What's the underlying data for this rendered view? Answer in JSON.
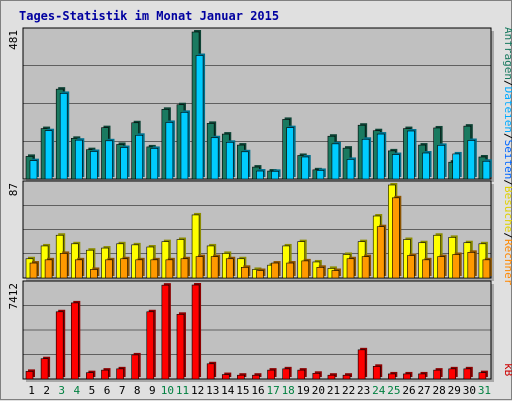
{
  "chart_data": {
    "type": "bar",
    "title": "Tages-Statistik im Monat Januar 2015",
    "categories": [
      "1",
      "2",
      "3",
      "4",
      "5",
      "6",
      "7",
      "8",
      "9",
      "10",
      "11",
      "12",
      "13",
      "14",
      "15",
      "16",
      "17",
      "18",
      "19",
      "20",
      "21",
      "22",
      "23",
      "24",
      "25",
      "26",
      "27",
      "28",
      "29",
      "30",
      "31"
    ],
    "weekend_days": [
      "3",
      "4",
      "10",
      "11",
      "17",
      "18",
      "24",
      "25",
      "31"
    ],
    "panels": [
      {
        "ymax_label": "481",
        "ylim": [
          0,
          481
        ],
        "series": [
          {
            "name": "Anfragen",
            "color": "#1a7a60",
            "values": [
              74,
              165,
              294,
              133,
              96,
              168,
              113,
              184,
              105,
              228,
              243,
              481,
              182,
              147,
              111,
              39,
              26,
              195,
              77,
              30,
              140,
              101,
              176,
              158,
              92,
              165,
              111,
              167,
              55,
              173,
              72
            ]
          },
          {
            "name": "Dateien",
            "color": "#00ccff",
            "values": [
              60,
              158,
              280,
              127,
              90,
              125,
              103,
              143,
              100,
              185,
              218,
              404,
              135,
              120,
              89,
              26,
              25,
              168,
              72,
              28,
              115,
              64,
              130,
              147,
              80,
              157,
              85,
              110,
              82,
              126,
              58
            ]
          },
          {
            "name": "Seiten",
            "color": "#3070f0",
            "values": [
              0,
              0,
              0,
              0,
              0,
              0,
              0,
              0,
              0,
              0,
              0,
              0,
              0,
              0,
              0,
              0,
              0,
              0,
              0,
              0,
              0,
              0,
              0,
              0,
              0,
              0,
              0,
              0,
              0,
              0,
              0
            ]
          }
        ]
      },
      {
        "ymax_label": "87",
        "ylim": [
          0,
          87
        ],
        "series": [
          {
            "name": "Besuche",
            "color": "#ffff00",
            "values": [
              18,
              30,
              40,
              32,
              26,
              28,
              32,
              31,
              29,
              34,
              36,
              59,
              30,
              23,
              18,
              8,
              12,
              30,
              34,
              15,
              9,
              22,
              34,
              58,
              87,
              36,
              33,
              40,
              38,
              33,
              32
            ]
          },
          {
            "name": "Rechner",
            "color": "#ff9900",
            "values": [
              14,
              17,
              23,
              17,
              8,
              17,
              18,
              17,
              17,
              17,
              18,
              20,
              20,
              18,
              10,
              7,
              14,
              14,
              16,
              10,
              7,
              18,
              20,
              48,
              75,
              21,
              17,
              20,
              22,
              24,
              17
            ]
          }
        ]
      },
      {
        "ymax_label": "7412",
        "ylim": [
          0,
          7412
        ],
        "series": [
          {
            "name": "kB",
            "color": "#ff0000",
            "values": [
              600,
              1600,
              5300,
              6000,
              500,
              700,
              800,
              1900,
              5300,
              7400,
              5100,
              7412,
              1200,
              350,
              300,
              300,
              700,
              800,
              700,
              450,
              300,
              300,
              2300,
              1000,
              400,
              400,
              400,
              700,
              800,
              800,
              500
            ]
          }
        ]
      }
    ],
    "side_labels": {
      "top": [
        {
          "text": "Anfragen",
          "color": "#1a7a60"
        },
        {
          "text": "/",
          "color": "#000000"
        },
        {
          "text": "Dateien",
          "color": "#00aaff"
        },
        {
          "text": "/",
          "color": "#000000"
        },
        {
          "text": "Seiten",
          "color": "#0066ff"
        },
        {
          "text": "/",
          "color": "#000000"
        },
        {
          "text": "Besuche",
          "color": "#e0d000"
        },
        {
          "text": "/",
          "color": "#000000"
        },
        {
          "text": "Rechner",
          "color": "#ff8800"
        }
      ],
      "bottom": {
        "text": "kB",
        "color": "#cc0000"
      }
    },
    "weekday_color": "#000000",
    "weekend_color": "#008040",
    "grid": true
  }
}
